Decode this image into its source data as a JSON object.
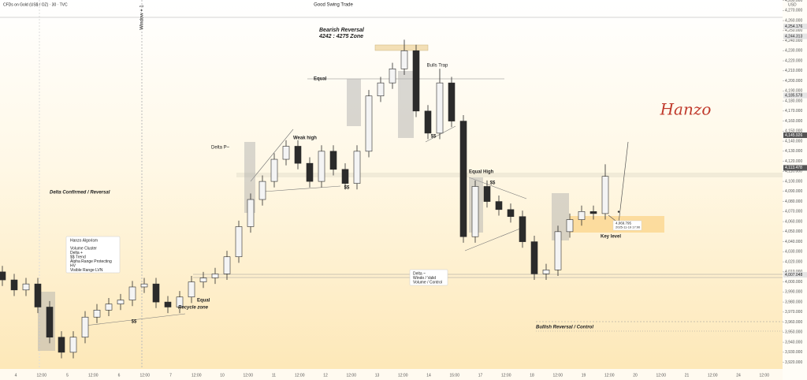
{
  "chart_data": {
    "type": "candlestick",
    "title": "CFDs on Gold (US$ / OZ) · 30 · TVC",
    "currency": "USD",
    "up_color": "#f4f4f4",
    "down_color": "#2b2b2b",
    "ylim": [
      3920,
      4280
    ],
    "yticks": [
      {
        "value": 3920,
        "label": "3,920.000"
      },
      {
        "value": 3930,
        "label": "3,930.000"
      },
      {
        "value": 3940,
        "label": "3,940.000"
      },
      {
        "value": 3950,
        "label": "3,950.000"
      },
      {
        "value": 3960,
        "label": "3,960.000"
      },
      {
        "value": 3970,
        "label": "3,970.000"
      },
      {
        "value": 3980,
        "label": "3,980.000"
      },
      {
        "value": 3990,
        "label": "3,990.000"
      },
      {
        "value": 4000,
        "label": "4,000.000"
      },
      {
        "value": 4010,
        "label": "4,010.000"
      },
      {
        "value": 4020,
        "label": "4,020.000"
      },
      {
        "value": 4030,
        "label": "4,030.000"
      },
      {
        "value": 4040,
        "label": "4,040.000"
      },
      {
        "value": 4050,
        "label": "4,050.000"
      },
      {
        "value": 4060,
        "label": "4,060.000"
      },
      {
        "value": 4070,
        "label": "4,070.000"
      },
      {
        "value": 4080,
        "label": "4,080.000"
      },
      {
        "value": 4090,
        "label": "4,090.000"
      },
      {
        "value": 4100,
        "label": "4,100.000"
      },
      {
        "value": 4110,
        "label": "4,110.000"
      },
      {
        "value": 4120,
        "label": "4,120.000"
      },
      {
        "value": 4130,
        "label": "4,130.000"
      },
      {
        "value": 4140,
        "label": "4,140.000"
      },
      {
        "value": 4150,
        "label": "4,150.000"
      },
      {
        "value": 4160,
        "label": "4,160.000"
      },
      {
        "value": 4170,
        "label": "4,170.000"
      },
      {
        "value": 4180,
        "label": "4,180.000"
      },
      {
        "value": 4190,
        "label": "4,190.000"
      },
      {
        "value": 4200,
        "label": "4,200.000"
      },
      {
        "value": 4210,
        "label": "4,210.000"
      },
      {
        "value": 4220,
        "label": "4,220.000"
      },
      {
        "value": 4230,
        "label": "4,230.000"
      },
      {
        "value": 4240,
        "label": "4,240.000"
      },
      {
        "value": 4250,
        "label": "4,250.000"
      },
      {
        "value": 4260,
        "label": "4,260.000"
      },
      {
        "value": 4270,
        "label": "4,270.000"
      },
      {
        "value": 4280,
        "label": "4,280.000"
      }
    ],
    "price_labels": [
      {
        "value": 4254.176,
        "label": "4,254.176"
      },
      {
        "value": 4244.313,
        "label": "4,244.313"
      },
      {
        "value": 4185.578,
        "label": "4,185.578"
      },
      {
        "value": 4145.926,
        "label": "4,145.926"
      },
      {
        "value": 4113.478,
        "label": "4,113.478"
      },
      {
        "value": 4007.048,
        "label": "4,007.048"
      }
    ],
    "time_labels": [
      "4",
      "12:00",
      "5",
      "12:00",
      "6",
      "12:00",
      "7",
      "12:00",
      "10",
      "12:00",
      "11",
      "12:00",
      "12",
      "12:00",
      "13",
      "12:00",
      "14",
      "15:00",
      "17",
      "12:00",
      "18",
      "12:00",
      "19",
      "12:00",
      "20",
      "12:00",
      "21",
      "12:00",
      "24",
      "12:00"
    ],
    "open": [
      4010,
      4002,
      3992,
      3998,
      3975,
      3945,
      3930,
      3945,
      3965,
      3972,
      3978,
      3982,
      3995,
      3998,
      3980,
      3975,
      3985,
      4000,
      4004,
      4008,
      4025,
      4055,
      4082,
      4100,
      4122,
      4135,
      4118,
      4100,
      4130,
      4112,
      4098,
      4130,
      4185,
      4198,
      4212,
      4230,
      4170,
      4148,
      4198,
      4160,
      4045,
      4095,
      4080,
      4072,
      4065,
      4040,
      4008,
      4012,
      4050,
      4062,
      4070,
      4068
    ],
    "high": [
      4016,
      4008,
      4004,
      4004,
      3981,
      3951,
      3951,
      3971,
      3978,
      3984,
      3988,
      4001,
      4004,
      4004,
      3986,
      3991,
      4006,
      4010,
      4014,
      4031,
      4061,
      4088,
      4106,
      4128,
      4141,
      4141,
      4124,
      4136,
      4136,
      4118,
      4136,
      4191,
      4204,
      4218,
      4241,
      4236,
      4176,
      4212,
      4204,
      4166,
      4101,
      4101,
      4086,
      4078,
      4071,
      4046,
      4018,
      4056,
      4068,
      4076,
      4076,
      4117
    ],
    "low": [
      3996,
      3986,
      3986,
      3969,
      3939,
      3924,
      3924,
      3939,
      3959,
      3966,
      3972,
      3976,
      3989,
      3974,
      3969,
      3969,
      3979,
      3994,
      3998,
      4002,
      4019,
      4049,
      4076,
      4094,
      4116,
      4112,
      4094,
      4094,
      4106,
      4092,
      4092,
      4124,
      4179,
      4192,
      4206,
      4164,
      4142,
      4142,
      4154,
      4039,
      4039,
      4074,
      4066,
      4059,
      4034,
      4002,
      4002,
      4006,
      4044,
      4056,
      4062,
      4062
    ],
    "close": [
      4002,
      3992,
      3998,
      3975,
      3945,
      3930,
      3945,
      3965,
      3972,
      3978,
      3982,
      3995,
      3998,
      3980,
      3975,
      3985,
      4000,
      4004,
      4008,
      4025,
      4055,
      4082,
      4100,
      4122,
      4135,
      4118,
      4100,
      4130,
      4112,
      4098,
      4130,
      4185,
      4198,
      4212,
      4230,
      4170,
      4148,
      4198,
      4160,
      4045,
      4095,
      4080,
      4072,
      4065,
      4040,
      4008,
      4012,
      4050,
      4062,
      4070,
      4068,
      4105
    ],
    "annotations": [
      "Good Swing Trade",
      "Bearish Reversal",
      "4242 : 4275 Zone",
      "Equal",
      "Bulls Trap",
      "Delta P~",
      "Weak high",
      "$$",
      "Delta Confirmed / Reversal",
      "Equal High",
      "$$",
      "$$",
      "Key level",
      "Equal",
      "Recycle zone",
      "$$",
      "Bullish Reversal / Control",
      "Window + 1"
    ],
    "signature": "Hanzo",
    "algo_box": {
      "title": "Hanzo Algorism",
      "lines": [
        "Volume Cluster",
        "Delta +",
        "$$ Trend",
        "Alpha Range Protecting",
        "HV",
        "Visible Range LVN"
      ]
    },
    "delta_box": [
      "Delta ~",
      "Windo / Valid",
      "Volume / Control"
    ],
    "cursor_label": {
      "price": {
        "value": 4069.795,
        "label": "4,069.795"
      },
      "time": "2025-11-19 17:00"
    }
  }
}
